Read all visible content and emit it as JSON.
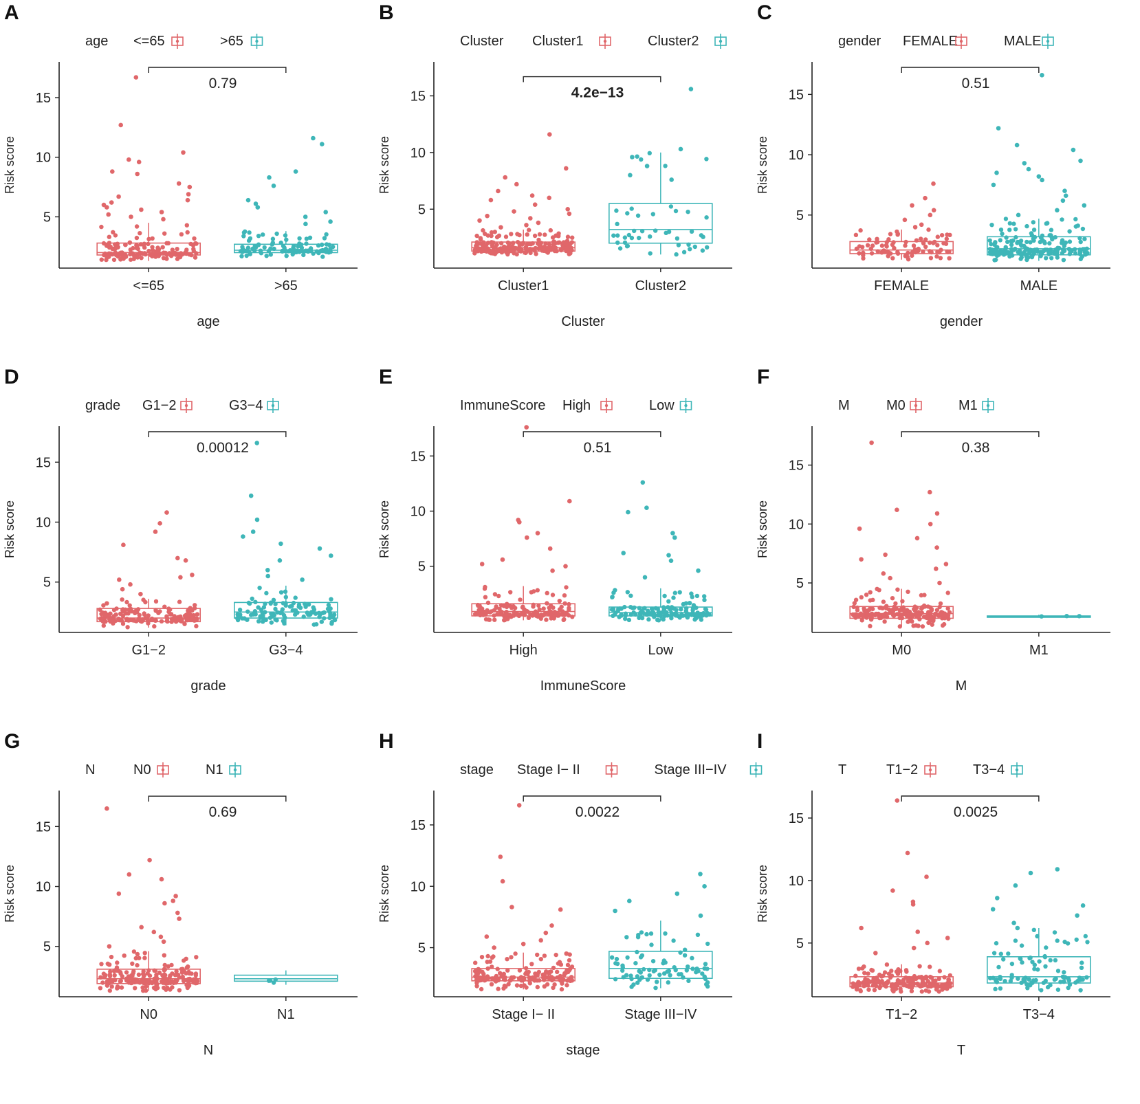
{
  "colors": {
    "group1": "#e0676a",
    "group2": "#3eb6b8",
    "axis": "#222222"
  },
  "chart_data": [
    {
      "panel_label": "A",
      "type": "box",
      "legend_title": "age",
      "groups": [
        "<=65",
        ">65"
      ],
      "xlabel": "age",
      "ylabel": "Risk score",
      "yticks": [
        5,
        10,
        15
      ],
      "ylim": [
        0.7,
        18.0
      ],
      "p_value": "0.79",
      "series": [
        {
          "name": "<=65",
          "q1": 1.8,
          "median": 2.0,
          "q3": 2.8,
          "whisker_low": 1.3,
          "whisker_high": 4.5,
          "max_point": 16.7,
          "n": 160,
          "outliers": [
            16.7,
            12.7,
            10.4,
            9.8,
            9.6,
            8.8,
            8.6,
            7.8,
            7.5,
            6.9,
            6.7,
            6.4,
            6.2,
            6.0,
            5.8,
            5.6,
            5.4,
            5.2,
            5.0,
            4.8
          ]
        },
        {
          "name": ">65",
          "q1": 2.0,
          "median": 2.2,
          "q3": 2.7,
          "whisker_low": 1.6,
          "whisker_high": 3.8,
          "max_point": 11.6,
          "n": 110,
          "outliers": [
            11.6,
            11.1,
            8.8,
            8.3,
            7.6,
            6.4,
            6.1,
            5.8,
            5.4,
            5.0,
            4.6,
            4.4
          ]
        }
      ]
    },
    {
      "panel_label": "B",
      "type": "box",
      "legend_title": "Cluster",
      "groups": [
        "Cluster1",
        "Cluster2"
      ],
      "xlabel": "Cluster",
      "ylabel": "Risk score",
      "yticks": [
        5,
        10,
        15
      ],
      "ylim": [
        -0.2,
        18.0
      ],
      "p_value": "4.2e−13",
      "p_value_large": true,
      "series": [
        {
          "name": "Cluster1",
          "q1": 1.3,
          "median": 1.6,
          "q3": 2.1,
          "whisker_low": 1.0,
          "whisker_high": 3.2,
          "max_point": 11.6,
          "n": 220,
          "outliers": [
            11.6,
            8.6,
            7.8,
            7.2,
            6.6,
            6.2,
            6.0,
            5.8,
            5.4,
            5.0,
            4.8,
            4.6,
            4.4,
            4.2,
            4.0,
            3.8,
            3.6,
            3.4
          ]
        },
        {
          "name": "Cluster2",
          "q1": 2.0,
          "median": 3.2,
          "q3": 5.5,
          "whisker_low": 1.0,
          "whisker_high": 10.0,
          "max_point": 15.6,
          "n": 45,
          "outliers": [
            15.6,
            10.3,
            9.6,
            8.8,
            8.0,
            7.6
          ]
        }
      ]
    },
    {
      "panel_label": "C",
      "type": "box",
      "legend_title": "gender",
      "groups": [
        "FEMALE",
        "MALE"
      ],
      "xlabel": "gender",
      "ylabel": "Risk score",
      "yticks": [
        5,
        10,
        15
      ],
      "ylim": [
        0.6,
        17.7
      ],
      "p_value": "0.51",
      "series": [
        {
          "name": "FEMALE",
          "q1": 1.8,
          "median": 2.1,
          "q3": 2.8,
          "whisker_low": 1.3,
          "whisker_high": 3.8,
          "max_point": 7.6,
          "n": 90,
          "outliers": [
            7.6,
            6.4,
            5.8,
            5.4,
            5.0,
            4.6,
            4.2,
            4.0
          ]
        },
        {
          "name": "MALE",
          "q1": 1.7,
          "median": 2.2,
          "q3": 3.2,
          "whisker_low": 1.2,
          "whisker_high": 4.7,
          "max_point": 16.6,
          "n": 190,
          "outliers": [
            16.6,
            12.2,
            10.8,
            10.4,
            9.5,
            9.3,
            8.8,
            8.5,
            8.2,
            7.9,
            7.5,
            7.0,
            6.6,
            6.2,
            5.8,
            5.4,
            5.0
          ]
        }
      ]
    },
    {
      "panel_label": "D",
      "type": "box",
      "legend_title": "grade",
      "groups": [
        "G1−2",
        "G3−4"
      ],
      "xlabel": "grade",
      "ylabel": "Risk score",
      "yticks": [
        5,
        10,
        15
      ],
      "ylim": [
        0.8,
        18.0
      ],
      "p_value": "0.00012",
      "series": [
        {
          "name": "G1−2",
          "q1": 1.7,
          "median": 2.0,
          "q3": 2.8,
          "whisker_low": 1.2,
          "whisker_high": 3.6,
          "max_point": 10.8,
          "n": 150,
          "outliers": [
            10.8,
            9.9,
            9.2,
            8.1,
            7.0,
            6.8,
            5.6,
            5.4,
            5.2,
            4.8,
            4.4,
            4.0
          ]
        },
        {
          "name": "G3−4",
          "q1": 2.0,
          "median": 2.5,
          "q3": 3.3,
          "whisker_low": 1.4,
          "whisker_high": 4.7,
          "max_point": 16.6,
          "n": 110,
          "outliers": [
            16.6,
            12.2,
            10.2,
            9.2,
            8.8,
            8.2,
            7.8,
            7.2,
            6.8,
            6.0,
            5.5,
            5.2
          ]
        }
      ]
    },
    {
      "panel_label": "E",
      "type": "box",
      "legend_title": "ImmuneScore",
      "groups": [
        "High",
        "Low"
      ],
      "xlabel": "ImmuneScore",
      "ylabel": "Risk score",
      "yticks": [
        5,
        10,
        15
      ],
      "ylim": [
        -1.0,
        17.7
      ],
      "p_value": "0.51",
      "series": [
        {
          "name": "High",
          "q1": 0.5,
          "median": 0.9,
          "q3": 1.6,
          "whisker_low": 0.1,
          "whisker_high": 3.2,
          "max_point": 17.6,
          "n": 150,
          "outliers": [
            17.6,
            10.9,
            9.2,
            9.0,
            8.0,
            7.6,
            6.6,
            5.6,
            5.2,
            5.0,
            4.6
          ]
        },
        {
          "name": "Low",
          "q1": 0.5,
          "median": 0.8,
          "q3": 1.3,
          "whisker_low": 0.1,
          "whisker_high": 3.0,
          "max_point": 12.6,
          "n": 150,
          "outliers": [
            12.6,
            10.3,
            9.9,
            8.0,
            7.6,
            6.2,
            6.0,
            5.5,
            4.6,
            4.0
          ]
        }
      ]
    },
    {
      "panel_label": "F",
      "type": "box",
      "legend_title": "M",
      "groups": [
        "M0",
        "M1"
      ],
      "xlabel": "M",
      "ylabel": "Risk score",
      "yticks": [
        5,
        10,
        15
      ],
      "ylim": [
        0.8,
        18.3
      ],
      "p_value": "0.38",
      "series": [
        {
          "name": "M0",
          "q1": 2.0,
          "median": 2.4,
          "q3": 3.0,
          "whisker_low": 1.3,
          "whisker_high": 4.5,
          "max_point": 16.9,
          "n": 190,
          "outliers": [
            16.9,
            12.7,
            11.2,
            10.9,
            10.0,
            9.6,
            8.8,
            8.0,
            7.4,
            7.0,
            6.6,
            6.2,
            5.8,
            5.4,
            5.0
          ]
        },
        {
          "name": "M1",
          "q1": 2.1,
          "median": 2.15,
          "q3": 2.2,
          "whisker_low": 2.05,
          "whisker_high": 2.3,
          "max_point": 2.4,
          "n": 3,
          "outliers": []
        }
      ]
    },
    {
      "panel_label": "G",
      "type": "box",
      "legend_title": "N",
      "groups": [
        "N0",
        "N1"
      ],
      "xlabel": "N",
      "ylabel": "Risk score",
      "yticks": [
        5,
        10,
        15
      ],
      "ylim": [
        0.8,
        18.0
      ],
      "p_value": "0.69",
      "series": [
        {
          "name": "N0",
          "q1": 1.9,
          "median": 2.3,
          "q3": 3.1,
          "whisker_low": 1.3,
          "whisker_high": 4.6,
          "max_point": 16.5,
          "n": 200,
          "outliers": [
            16.5,
            12.2,
            11.0,
            10.6,
            9.4,
            9.2,
            8.8,
            8.6,
            7.8,
            7.3,
            6.6,
            6.2,
            5.8,
            5.4,
            5.0
          ]
        },
        {
          "name": "N1",
          "q1": 2.1,
          "median": 2.3,
          "q3": 2.6,
          "whisker_low": 1.8,
          "whisker_high": 3.0,
          "max_point": 3.0,
          "n": 4,
          "outliers": []
        }
      ]
    },
    {
      "panel_label": "H",
      "type": "box",
      "legend_title": "stage",
      "groups": [
        "Stage I− II",
        "Stage III−IV"
      ],
      "xlabel": "stage",
      "ylabel": "Risk score",
      "yticks": [
        5,
        10,
        15
      ],
      "ylim": [
        1.0,
        17.8
      ],
      "p_value": "0.0022",
      "series": [
        {
          "name": "Stage I− II",
          "q1": 2.3,
          "median": 2.6,
          "q3": 3.3,
          "whisker_low": 1.6,
          "whisker_high": 4.6,
          "max_point": 16.6,
          "n": 170,
          "outliers": [
            16.6,
            12.4,
            10.4,
            8.3,
            8.1,
            6.8,
            6.2,
            5.9,
            5.6,
            5.3,
            5.0
          ]
        },
        {
          "name": "Stage III−IV",
          "q1": 2.5,
          "median": 3.3,
          "q3": 4.7,
          "whisker_low": 1.7,
          "whisker_high": 7.2,
          "max_point": 11.0,
          "n": 80,
          "outliers": [
            11.0,
            10.0,
            9.4,
            8.8,
            8.0,
            7.6
          ]
        }
      ]
    },
    {
      "panel_label": "I",
      "type": "box",
      "legend_title": "T",
      "groups": [
        "T1−2",
        "T3−4"
      ],
      "xlabel": "T",
      "ylabel": "Risk score",
      "yticks": [
        5,
        10,
        15
      ],
      "ylim": [
        0.7,
        17.2
      ],
      "p_value": "0.0025",
      "series": [
        {
          "name": "T1−2",
          "q1": 1.5,
          "median": 1.8,
          "q3": 2.3,
          "whisker_low": 1.1,
          "whisker_high": 3.3,
          "max_point": 16.4,
          "n": 190,
          "outliers": [
            16.4,
            12.2,
            10.3,
            9.2,
            8.3,
            8.1,
            6.2,
            5.9,
            5.4,
            5.0,
            4.6,
            4.2
          ]
        },
        {
          "name": "T3−4",
          "q1": 1.8,
          "median": 2.3,
          "q3": 3.9,
          "whisker_low": 1.2,
          "whisker_high": 6.2,
          "max_point": 10.9,
          "n": 90,
          "outliers": [
            10.9,
            10.6,
            9.6,
            8.6,
            8.0,
            7.7,
            7.2,
            6.6,
            6.2
          ]
        }
      ]
    }
  ]
}
